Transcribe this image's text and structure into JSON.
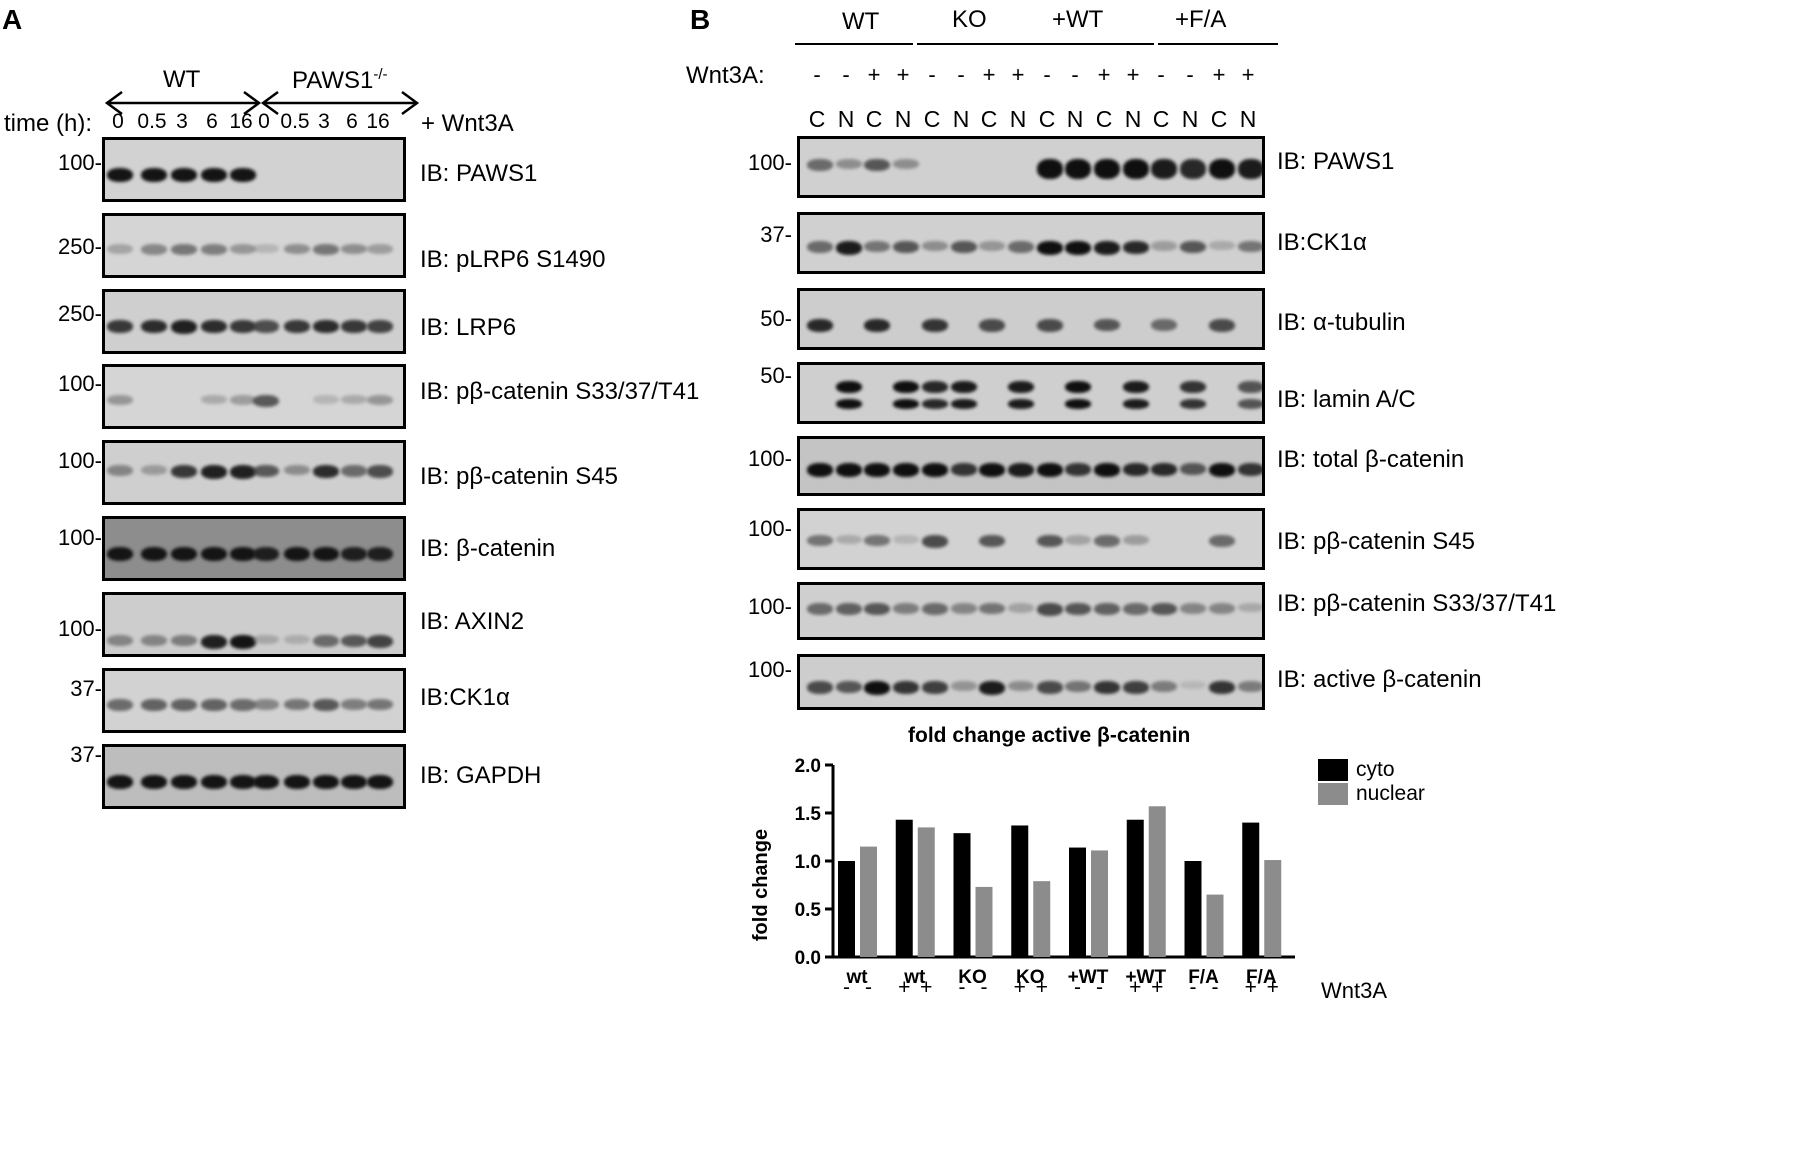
{
  "panel_a": {
    "letter": "A",
    "groups": [
      "WT",
      "PAWS1",
      "-/-"
    ],
    "time_label": "time (h):",
    "times": [
      "0",
      "0.5",
      "3",
      "6",
      "16",
      "0",
      "0.5",
      "3",
      "6",
      "16"
    ],
    "treatment": "+ Wnt3A",
    "blots": [
      {
        "mw": "100-",
        "label": "IB: PAWS1",
        "bg": "#d2d2d2",
        "intensity": [
          1,
          1,
          1,
          1,
          1,
          0,
          0,
          0,
          0,
          0
        ]
      },
      {
        "mw": "250-",
        "label": "IB: pLRP6 S1490",
        "bg": "#d5d5d5",
        "intensity": [
          0.25,
          0.45,
          0.55,
          0.5,
          0.35,
          0.1,
          0.4,
          0.55,
          0.4,
          0.3
        ]
      },
      {
        "mw": "250-",
        "label": "IB: LRP6",
        "bg": "#cfcfcf",
        "intensity": [
          0.85,
          0.9,
          0.95,
          0.9,
          0.85,
          0.75,
          0.85,
          0.9,
          0.85,
          0.8
        ]
      },
      {
        "mw": "100-",
        "label": "IB: pβ-catenin S33/37/T41",
        "bg": "#d5d5d5",
        "intensity": [
          0.35,
          0,
          0,
          0.2,
          0.3,
          0.7,
          0,
          0.1,
          0.2,
          0.35
        ]
      },
      {
        "mw": "100-",
        "label": "IB: pβ-catenin S45",
        "bg": "#cfcfcf",
        "intensity": [
          0.45,
          0.3,
          0.85,
          0.95,
          0.95,
          0.7,
          0.4,
          0.9,
          0.6,
          0.75
        ]
      },
      {
        "mw": "100-",
        "label": "IB: β-catenin",
        "bg": "#8d8d8d",
        "intensity": [
          1,
          1,
          1,
          1,
          1,
          0.95,
          1,
          1,
          0.95,
          0.95
        ]
      },
      {
        "mw": "100-",
        "label": "IB: AXIN2",
        "bg": "#cdcdcd",
        "intensity": [
          0.45,
          0.45,
          0.5,
          0.95,
          1,
          0.2,
          0.15,
          0.6,
          0.7,
          0.8
        ]
      },
      {
        "mw": "37-",
        "label": "IB:CK1α",
        "bg": "#d2d2d2",
        "intensity": [
          0.6,
          0.65,
          0.65,
          0.65,
          0.6,
          0.45,
          0.55,
          0.7,
          0.5,
          0.55
        ]
      },
      {
        "mw": "37-",
        "label": "IB: GAPDH",
        "bg": "#bdbdbd",
        "intensity": [
          1,
          1,
          1,
          1,
          1,
          1,
          1,
          1,
          1,
          1
        ]
      }
    ]
  },
  "panel_b": {
    "letter": "B",
    "groups": [
      "WT",
      "KO",
      "+WT",
      "+F/A"
    ],
    "wnt_label": "Wnt3A:",
    "wnt_signs": [
      "-",
      "-",
      "+",
      "+",
      "-",
      "-",
      "+",
      "+",
      "-",
      "-",
      "+",
      "+",
      "-",
      "-",
      "+",
      "+"
    ],
    "fractions": [
      "C",
      "N",
      "C",
      "N",
      "C",
      "N",
      "C",
      "N",
      "C",
      "N",
      "C",
      "N",
      "C",
      "N",
      "C",
      "N"
    ],
    "blots": [
      {
        "mw": "100-",
        "label": "IB: PAWS1",
        "bg": "#d0d0d0",
        "intensity": [
          0.6,
          0.4,
          0.7,
          0.4,
          0,
          0,
          0,
          0,
          1,
          1,
          1,
          1,
          0.95,
          0.9,
          1,
          0.95
        ]
      },
      {
        "mw": "37-",
        "label": "IB:CK1α",
        "bg": "#d0d0d0",
        "intensity": [
          0.6,
          0.95,
          0.55,
          0.7,
          0.4,
          0.7,
          0.35,
          0.6,
          1,
          1,
          0.95,
          0.9,
          0.3,
          0.7,
          0.2,
          0.55
        ]
      },
      {
        "mw": "50-",
        "label": "IB: α-tubulin",
        "bg": "#cdcdcd",
        "intensity": [
          0.9,
          0,
          0.9,
          0,
          0.85,
          0,
          0.75,
          0,
          0.75,
          0,
          0.7,
          0,
          0.6,
          0,
          0.75,
          0
        ]
      },
      {
        "mw": "50-",
        "label": "IB: lamin A/C",
        "bg": "#cfcfcf",
        "intensity": [
          0,
          1,
          0,
          1,
          0.9,
          0.95,
          0,
          0.95,
          0,
          1,
          0,
          0.95,
          0,
          0.85,
          0,
          0.7
        ]
      },
      {
        "mw": "100-",
        "label": "IB: total β-catenin",
        "bg": "#c4c4c4",
        "intensity": [
          1,
          1,
          1,
          1,
          1,
          0.85,
          1,
          0.95,
          1,
          0.85,
          1,
          0.9,
          0.9,
          0.7,
          1,
          0.85
        ]
      },
      {
        "mw": "100-",
        "label": "IB: pβ-catenin S45",
        "bg": "#d2d2d2",
        "intensity": [
          0.55,
          0.2,
          0.55,
          0.1,
          0.75,
          0,
          0.7,
          0,
          0.7,
          0.25,
          0.6,
          0.3,
          0,
          0,
          0.6,
          0
        ]
      },
      {
        "mw": "100-",
        "label": "IB: pβ-catenin S33/37/T41",
        "bg": "#cfcfcf",
        "intensity": [
          0.6,
          0.65,
          0.7,
          0.5,
          0.6,
          0.45,
          0.55,
          0.25,
          0.75,
          0.7,
          0.65,
          0.6,
          0.7,
          0.45,
          0.45,
          0.2
        ]
      },
      {
        "mw": "100-",
        "label": "IB: active β-catenin",
        "bg": "#cdcdcd",
        "intensity": [
          0.75,
          0.7,
          1,
          0.85,
          0.8,
          0.35,
          0.95,
          0.4,
          0.75,
          0.55,
          0.85,
          0.8,
          0.5,
          0.05,
          0.85,
          0.5
        ]
      }
    ]
  },
  "chart_data": {
    "type": "bar",
    "title": "fold change active β-catenin",
    "ylabel": "fold change",
    "xlabel": "",
    "ylim": [
      0,
      2.0
    ],
    "yticks": [
      "0.0",
      "0.5",
      "1.0",
      "1.5",
      "2.0"
    ],
    "categories": [
      "wt",
      "wt",
      "KO",
      "KO",
      "+WT",
      "+WT",
      "F/A",
      "F/A"
    ],
    "series": [
      {
        "name": "cyto",
        "color": "#000000",
        "values": [
          1.0,
          1.43,
          1.29,
          1.37,
          1.14,
          1.43,
          1.0,
          1.4
        ]
      },
      {
        "name": "nuclear",
        "color": "#8c8c8c",
        "values": [
          1.15,
          1.35,
          0.73,
          0.79,
          1.11,
          1.57,
          0.65,
          1.01
        ]
      }
    ],
    "wnt_signs": [
      "-",
      "-",
      "+",
      "+",
      "-",
      "-",
      "+",
      "+",
      "-",
      "-",
      "+",
      "+",
      "-",
      "-",
      "+",
      "+"
    ],
    "wnt_label": "Wnt3A",
    "legend_position": "top-right",
    "grid": false
  }
}
